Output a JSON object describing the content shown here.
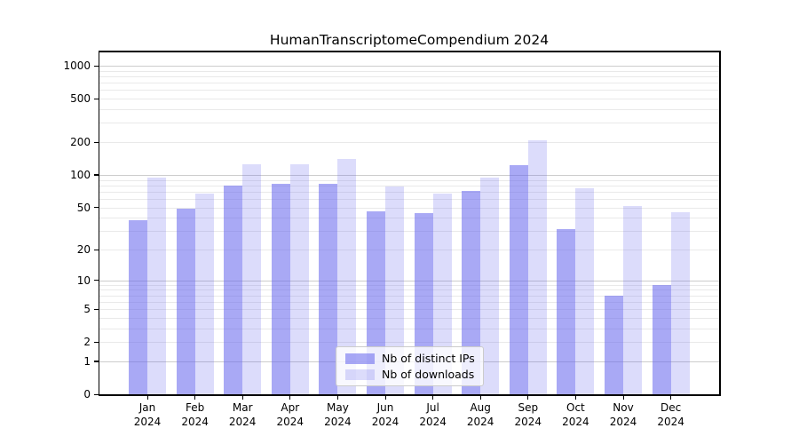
{
  "title": "HumanTranscriptomeCompendium 2024",
  "legend": {
    "items": [
      {
        "label": "Nb of distinct IPs",
        "key": "ips"
      },
      {
        "label": "Nb of downloads",
        "key": "downloads"
      }
    ]
  },
  "y_axis": {
    "scale": "log10(1+y)",
    "tick_values": [
      0,
      1,
      2,
      5,
      10,
      20,
      50,
      100,
      200,
      500,
      1000
    ],
    "tick_labels": [
      "0",
      "1",
      "2",
      "5",
      "10",
      "20",
      "50",
      "100",
      "200",
      "500",
      "1000"
    ]
  },
  "x_axis": {
    "months": [
      "Jan",
      "Feb",
      "Mar",
      "Apr",
      "May",
      "Jun",
      "Jul",
      "Aug",
      "Sep",
      "Oct",
      "Nov",
      "Dec"
    ],
    "year": "2024"
  },
  "colors": {
    "bar_base": "#6666ee",
    "ips_alpha": 0.56,
    "downloads_alpha": 0.23,
    "grid_major": "#cccccc",
    "grid_minor": "#e9e9e9",
    "spine": "#000000",
    "legend_border": "#cccccc",
    "text": "#000000"
  },
  "chart_data": {
    "type": "bar",
    "categories": [
      "Jan 2024",
      "Feb 2024",
      "Mar 2024",
      "Apr 2024",
      "May 2024",
      "Jun 2024",
      "Jul 2024",
      "Aug 2024",
      "Sep 2024",
      "Oct 2024",
      "Nov 2024",
      "Dec 2024"
    ],
    "series": [
      {
        "name": "Nb of distinct IPs",
        "values": [
          38,
          49,
          80,
          83,
          83,
          46,
          44,
          71,
          124,
          31,
          7,
          9
        ]
      },
      {
        "name": "Nb of downloads",
        "values": [
          95,
          67,
          126,
          126,
          140,
          78,
          67,
          94,
          207,
          75,
          51,
          45
        ]
      }
    ],
    "title": "HumanTranscriptomeCompendium 2024",
    "xlabel": "",
    "ylabel": "",
    "yscale": "log10(1+y)",
    "ylim": [
      0,
      1270
    ],
    "yticks": [
      0,
      1,
      2,
      5,
      10,
      20,
      50,
      100,
      200,
      500,
      1000
    ],
    "grid": true,
    "legend_position": "lower center"
  }
}
